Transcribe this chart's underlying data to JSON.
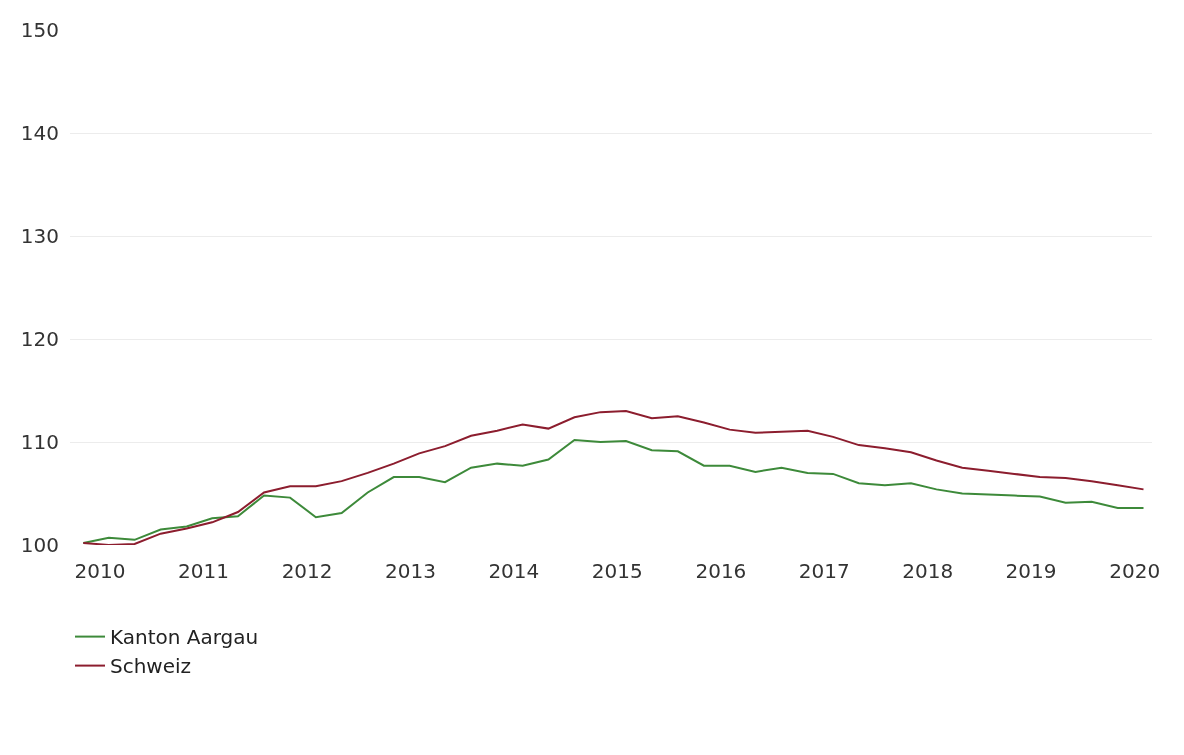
{
  "chart_data": {
    "type": "line",
    "x": [
      "2010-01",
      "2010-04",
      "2010-07",
      "2010-10",
      "2011-01",
      "2011-04",
      "2011-07",
      "2011-10",
      "2012-01",
      "2012-04",
      "2012-07",
      "2012-10",
      "2013-01",
      "2013-04",
      "2013-07",
      "2013-10",
      "2014-01",
      "2014-04",
      "2014-07",
      "2014-10",
      "2015-01",
      "2015-04",
      "2015-07",
      "2015-10",
      "2016-01",
      "2016-04",
      "2016-07",
      "2016-10",
      "2017-01",
      "2017-04",
      "2017-07",
      "2017-10",
      "2018-01",
      "2018-04",
      "2018-07",
      "2018-10",
      "2019-01",
      "2019-04",
      "2019-07",
      "2019-10",
      "2020-01",
      "2020-04"
    ],
    "series": [
      {
        "name": "Kanton Aargau",
        "color": "#3d8a3a",
        "values": [
          100.2,
          100.7,
          100.5,
          101.5,
          101.8,
          102.6,
          102.8,
          104.8,
          104.6,
          102.7,
          103.1,
          105.1,
          106.6,
          106.6,
          106.1,
          107.5,
          107.9,
          107.7,
          108.3,
          110.2,
          110.0,
          110.1,
          109.2,
          109.1,
          107.7,
          107.7,
          107.1,
          107.5,
          107.0,
          106.9,
          106.0,
          105.8,
          106.0,
          105.4,
          105.0,
          104.9,
          104.8,
          104.7,
          104.1,
          104.2,
          103.6,
          103.6
        ]
      },
      {
        "name": "Schweiz",
        "color": "#8c1d2e",
        "values": [
          100.2,
          100.0,
          100.1,
          101.1,
          101.6,
          102.2,
          103.2,
          105.1,
          105.7,
          105.7,
          106.2,
          107.0,
          107.9,
          108.9,
          109.6,
          110.6,
          111.1,
          111.7,
          111.3,
          112.4,
          112.9,
          113.0,
          112.3,
          112.5,
          111.9,
          111.2,
          110.9,
          111.0,
          111.1,
          110.5,
          109.7,
          109.4,
          109.0,
          108.2,
          107.5,
          107.2,
          106.9,
          106.6,
          106.5,
          106.2,
          105.8,
          105.4
        ]
      }
    ],
    "xlim": [
      "2009-11-15",
      "2020-05-01"
    ],
    "xticks": [
      {
        "value": "2010-03-01",
        "label": "2010"
      },
      {
        "value": "2011-03-01",
        "label": "2011"
      },
      {
        "value": "2012-03-01",
        "label": "2012"
      },
      {
        "value": "2013-03-01",
        "label": "2013"
      },
      {
        "value": "2014-03-01",
        "label": "2014"
      },
      {
        "value": "2015-03-01",
        "label": "2015"
      },
      {
        "value": "2016-03-01",
        "label": "2016"
      },
      {
        "value": "2017-03-01",
        "label": "2017"
      },
      {
        "value": "2018-03-01",
        "label": "2018"
      },
      {
        "value": "2019-03-01",
        "label": "2019"
      },
      {
        "value": "2020-03-01",
        "label": "2020"
      }
    ],
    "ylim": [
      100,
      150
    ],
    "yticks": [
      100,
      110,
      120,
      130,
      140,
      150
    ],
    "grid": "y",
    "legend": "bottom left",
    "marker": "none",
    "line_style": "solid"
  }
}
